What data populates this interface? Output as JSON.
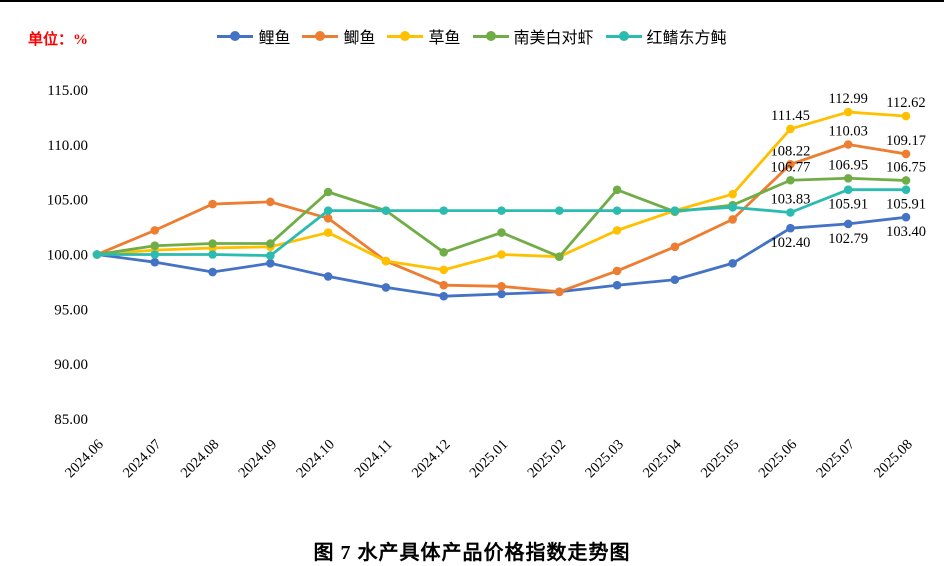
{
  "page": {
    "unit_label": "单位：%",
    "title": "图 7 水产具体产品价格指数走势图"
  },
  "chart_data": {
    "type": "line",
    "x": [
      "2024.06",
      "2024.07",
      "2024.08",
      "2024.09",
      "2024.10",
      "2024.11",
      "2024.12",
      "2025.01",
      "2025.02",
      "2025.03",
      "2025.04",
      "2025.05",
      "2025.06",
      "2025.07",
      "2025.08"
    ],
    "ylim": [
      85,
      115
    ],
    "ytick_step": 5,
    "grid": false,
    "legend_position": "top",
    "series": [
      {
        "name": "鲤鱼",
        "color": "#4472C4",
        "values": [
          100.0,
          99.3,
          98.4,
          99.2,
          98.0,
          97.0,
          96.2,
          96.4,
          96.6,
          97.2,
          97.7,
          99.2,
          102.4,
          102.79,
          103.4
        ],
        "point_labels": [
          {
            "i": 12,
            "text": "102.40",
            "pos": "below"
          },
          {
            "i": 13,
            "text": "102.79",
            "pos": "below"
          },
          {
            "i": 14,
            "text": "103.40",
            "pos": "below"
          }
        ]
      },
      {
        "name": "鲫鱼",
        "color": "#ED7D31",
        "values": [
          100.0,
          102.2,
          104.6,
          104.8,
          103.3,
          99.4,
          97.2,
          97.1,
          96.6,
          98.5,
          100.7,
          103.2,
          108.22,
          110.03,
          109.17
        ],
        "point_labels": [
          {
            "i": 12,
            "text": "108.22",
            "pos": "above"
          },
          {
            "i": 13,
            "text": "110.03",
            "pos": "above"
          },
          {
            "i": 14,
            "text": "109.17",
            "pos": "above"
          }
        ]
      },
      {
        "name": "草鱼",
        "color": "#FFC000",
        "values": [
          100.0,
          100.4,
          100.6,
          100.7,
          102.0,
          99.4,
          98.6,
          100.0,
          99.8,
          102.2,
          104.0,
          105.5,
          111.45,
          112.99,
          112.62
        ],
        "point_labels": [
          {
            "i": 12,
            "text": "111.45",
            "pos": "above"
          },
          {
            "i": 13,
            "text": "112.99",
            "pos": "above"
          },
          {
            "i": 14,
            "text": "112.62",
            "pos": "above"
          }
        ]
      },
      {
        "name": "南美白对虾",
        "color": "#70AD47",
        "values": [
          100.0,
          100.8,
          101.0,
          101.0,
          105.7,
          104.0,
          100.2,
          102.0,
          99.8,
          105.9,
          103.9,
          104.5,
          106.77,
          106.95,
          106.75
        ],
        "point_labels": [
          {
            "i": 12,
            "text": "106.77",
            "pos": "above"
          },
          {
            "i": 13,
            "text": "106.95",
            "pos": "above"
          },
          {
            "i": 14,
            "text": "106.75",
            "pos": "above"
          }
        ]
      },
      {
        "name": "红鳍东方鲀",
        "color": "#2BBBB0",
        "values": [
          100.0,
          100.0,
          100.0,
          99.9,
          104.0,
          104.0,
          104.0,
          104.0,
          104.0,
          104.0,
          104.0,
          104.3,
          103.83,
          105.91,
          105.91
        ],
        "point_labels": [
          {
            "i": 12,
            "text": "103.83",
            "pos": "above"
          },
          {
            "i": 13,
            "text": "105.91",
            "pos": "below"
          },
          {
            "i": 14,
            "text": "105.91",
            "pos": "below"
          }
        ]
      }
    ]
  }
}
